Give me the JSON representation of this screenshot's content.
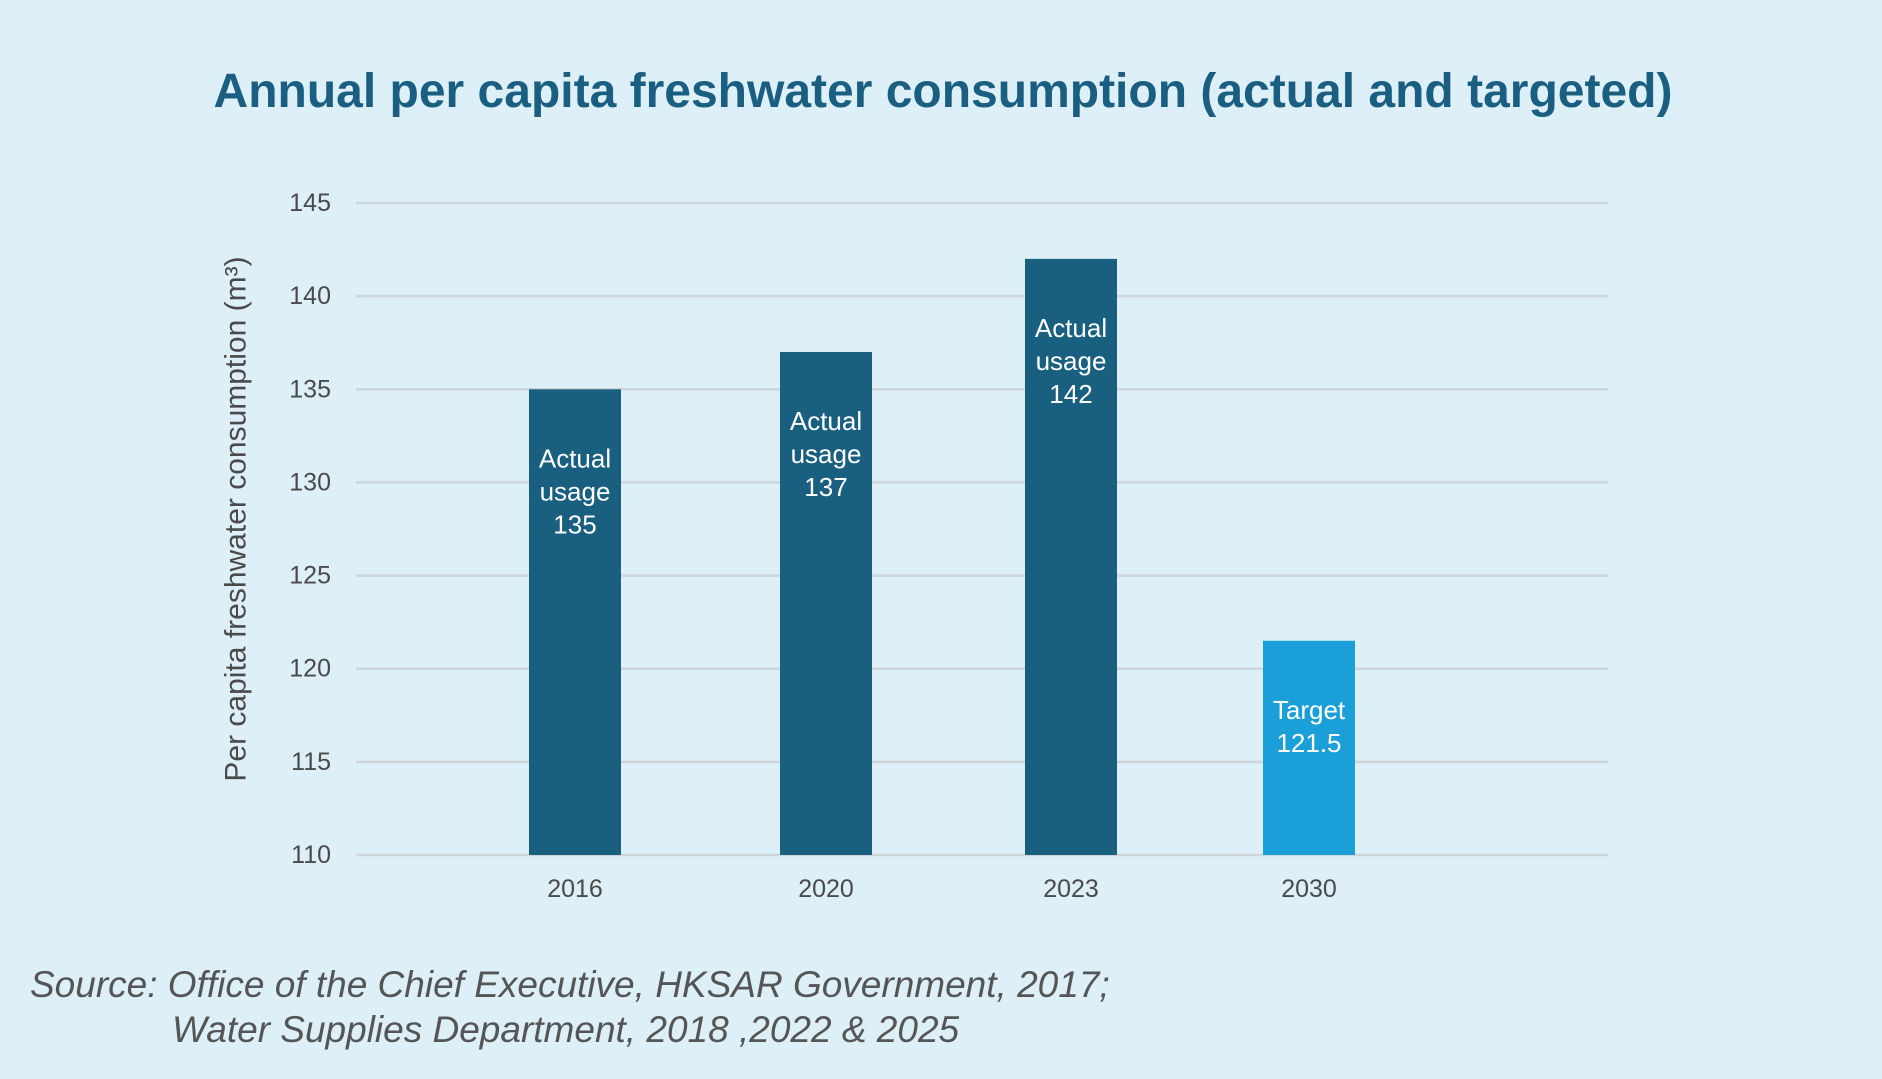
{
  "chart_data": {
    "type": "bar",
    "title": "Annual per capita freshwater consumption (actual and targeted)",
    "xlabel": "",
    "ylabel": "Per capita freshwater consumption (m³)",
    "ylim": [
      110,
      145
    ],
    "yticks": [
      110,
      115,
      120,
      125,
      130,
      135,
      140,
      145
    ],
    "grid": true,
    "categories": [
      "2016",
      "2020",
      "2023",
      "2030"
    ],
    "values": [
      135,
      137,
      142,
      121.5
    ],
    "bar_labels": [
      [
        "Actual",
        "usage",
        "135"
      ],
      [
        "Actual",
        "usage",
        "137"
      ],
      [
        "Actual",
        "usage",
        "142"
      ],
      [
        "Target",
        "121.5"
      ]
    ],
    "bar_colors": [
      "#185f80",
      "#185f80",
      "#185f80",
      "#1b9fd9"
    ]
  },
  "source": {
    "line1": "Source: Office of the Chief Executive, HKSAR Government, 2017;",
    "line2": "Water Supplies Department, 2018 ,2022 & 2025"
  }
}
